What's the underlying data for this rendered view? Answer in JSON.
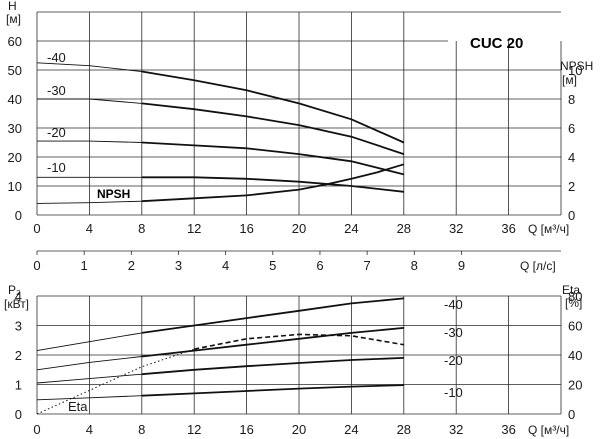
{
  "chart_data": [
    {
      "type": "line",
      "title": "CUC 20",
      "y_label": "H",
      "y_unit": "[м]",
      "y_ticks": [
        "0",
        "10",
        "20",
        "30",
        "40",
        "50",
        "60"
      ],
      "ylim": [
        0,
        70
      ],
      "y2_label": "NPSH",
      "y2_unit": "[м]",
      "y2_ticks": [
        "0",
        "2",
        "4",
        "6",
        "8",
        "10"
      ],
      "y2lim": [
        0,
        14
      ],
      "x_ticks": [
        "0",
        "4",
        "8",
        "12",
        "16",
        "20",
        "24",
        "28",
        "32",
        "36"
      ],
      "xlabel": "Q [м³/ч]",
      "xlim": [
        0,
        38
      ],
      "x_ls_ticks": [
        "0",
        "1",
        "2",
        "3",
        "4",
        "5",
        "6",
        "7",
        "8",
        "9"
      ],
      "x_ls_label": "Q [л/с]",
      "series": [
        {
          "name": "-40",
          "x": [
            0,
            4,
            8,
            12,
            16,
            20,
            24,
            28
          ],
          "y": [
            52.5,
            51.5,
            49.5,
            46.5,
            43,
            38.5,
            33,
            25
          ]
        },
        {
          "name": "-30",
          "x": [
            0,
            4,
            8,
            12,
            16,
            20,
            24,
            28
          ],
          "y": [
            40,
            40,
            38.5,
            36.5,
            34,
            31,
            27,
            21
          ]
        },
        {
          "name": "-20",
          "x": [
            0,
            4,
            8,
            12,
            16,
            20,
            24,
            28
          ],
          "y": [
            25.5,
            25.5,
            25,
            24,
            23,
            21,
            18.5,
            14
          ]
        },
        {
          "name": "-10",
          "x": [
            0,
            4,
            8,
            12,
            16,
            20,
            24,
            28
          ],
          "y": [
            13,
            13,
            13,
            13,
            12.5,
            11.5,
            10,
            8
          ]
        },
        {
          "name": "NPSH",
          "axis": "y2",
          "x": [
            0,
            4,
            8,
            12,
            16,
            20,
            22,
            24,
            26,
            28
          ],
          "y": [
            0.8,
            0.85,
            0.95,
            1.15,
            1.35,
            1.75,
            2.1,
            2.5,
            2.95,
            3.5
          ]
        }
      ]
    },
    {
      "type": "line",
      "y_label": "P₂",
      "y_unit": "[кВт]",
      "y_ticks": [
        "0",
        "1",
        "2",
        "3",
        "4"
      ],
      "ylim": [
        0,
        4
      ],
      "y2_label": "Eta",
      "y2_unit": "[%]",
      "y2_ticks": [
        "0",
        "20",
        "40",
        "60",
        "80"
      ],
      "y2lim": [
        0,
        80
      ],
      "x_ticks": [
        "0",
        "4",
        "8",
        "12",
        "16",
        "20",
        "24",
        "28",
        "32",
        "36"
      ],
      "xlabel": "Q [м³/ч]",
      "xlim": [
        0,
        38
      ],
      "series": [
        {
          "name": "-40",
          "x": [
            0,
            4,
            8,
            12,
            16,
            20,
            24,
            28
          ],
          "y": [
            2.15,
            2.45,
            2.75,
            3.0,
            3.25,
            3.5,
            3.75,
            3.92
          ]
        },
        {
          "name": "-30",
          "x": [
            0,
            4,
            8,
            12,
            16,
            20,
            24,
            28
          ],
          "y": [
            1.5,
            1.75,
            1.95,
            2.15,
            2.35,
            2.55,
            2.75,
            2.92
          ]
        },
        {
          "name": "-20",
          "x": [
            0,
            4,
            8,
            12,
            16,
            20,
            24,
            28
          ],
          "y": [
            1.05,
            1.2,
            1.35,
            1.5,
            1.62,
            1.73,
            1.83,
            1.9
          ]
        },
        {
          "name": "-10",
          "x": [
            0,
            4,
            8,
            12,
            16,
            20,
            24,
            28
          ],
          "y": [
            0.48,
            0.55,
            0.62,
            0.7,
            0.78,
            0.86,
            0.93,
            0.98
          ]
        },
        {
          "name": "Eta",
          "axis": "y2",
          "x": [
            0,
            4,
            8,
            12,
            16,
            20,
            24,
            28
          ],
          "y": [
            0,
            16,
            32,
            44,
            51,
            54,
            53,
            47
          ]
        }
      ]
    }
  ]
}
